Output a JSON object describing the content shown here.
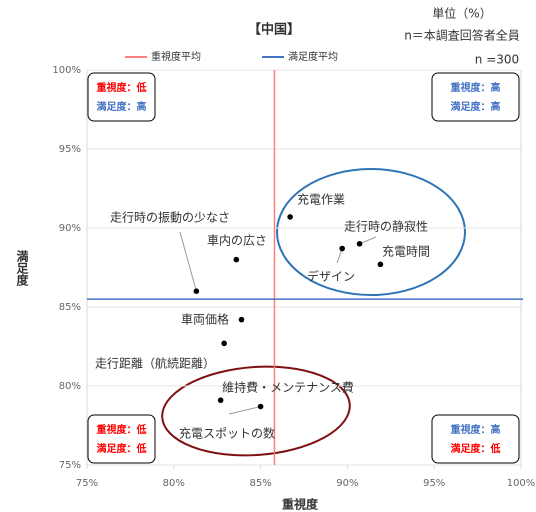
{
  "chart_data": {
    "type": "scatter",
    "title": "【中国】",
    "unit": "単位（%）",
    "respondents": "n＝本調査回答者全員",
    "sample_size": "n =300",
    "xlabel": "重視度",
    "ylabel": "満足度",
    "xlim": [
      75,
      100
    ],
    "ylim": [
      75,
      100
    ],
    "xticks": [
      {
        "value": 75,
        "label": "75%"
      },
      {
        "value": 80,
        "label": "80%"
      },
      {
        "value": 85,
        "label": "85%"
      },
      {
        "value": 90,
        "label": "90%"
      },
      {
        "value": 95,
        "label": "95%"
      },
      {
        "value": 100,
        "label": "100%"
      }
    ],
    "yticks": [
      {
        "value": 75,
        "label": "75%"
      },
      {
        "value": 80,
        "label": "80%"
      },
      {
        "value": 85,
        "label": "85%"
      },
      {
        "value": 90,
        "label": "90%"
      },
      {
        "value": 95,
        "label": "95%"
      },
      {
        "value": 100,
        "label": "100%"
      }
    ],
    "grid": true,
    "point_color": "#000000",
    "points": [
      {
        "label": "走行時の振動の少なさ",
        "x": 81.3,
        "y": 86.0
      },
      {
        "label": "車内の広さ",
        "x": 83.6,
        "y": 88.0
      },
      {
        "label": "充電作業",
        "x": 86.7,
        "y": 90.7
      },
      {
        "label": "走行時の静寂性",
        "x": 90.7,
        "y": 89.0
      },
      {
        "label": "デザイン",
        "x": 89.7,
        "y": 88.7
      },
      {
        "label": "充電時間",
        "x": 91.9,
        "y": 87.7
      },
      {
        "label": "車両価格",
        "x": 83.9,
        "y": 84.2
      },
      {
        "label": "走行距離（航続距離）",
        "x": 82.9,
        "y": 82.7
      },
      {
        "label": "維持費・メンテナンス費",
        "x": 82.7,
        "y": 79.1
      },
      {
        "label": "充電スポットの数",
        "x": 85.0,
        "y": 78.7
      }
    ],
    "reference_lines": [
      {
        "name": "重視度平均",
        "color": "#ff7f7f",
        "axis": "x",
        "value": 85.8
      },
      {
        "name": "満足度平均",
        "color": "#4472c4",
        "axis": "y",
        "value": 85.5
      }
    ],
    "quadrants": [
      {
        "lines": [
          {
            "text": "重視度：低",
            "color": "#ff0000"
          },
          {
            "text": "満足度：高",
            "color": "#4472c4"
          }
        ]
      },
      {
        "lines": [
          {
            "text": "重視度：高",
            "color": "#4472c4"
          },
          {
            "text": "満足度：高",
            "color": "#4472c4"
          }
        ]
      },
      {
        "lines": [
          {
            "text": "重視度：低",
            "color": "#ff0000"
          },
          {
            "text": "満足度：低",
            "color": "#ff0000"
          }
        ]
      },
      {
        "lines": [
          {
            "text": "重視度：高",
            "color": "#4472c4"
          },
          {
            "text": "満足度：低",
            "color": "#ff0000"
          }
        ]
      }
    ]
  }
}
